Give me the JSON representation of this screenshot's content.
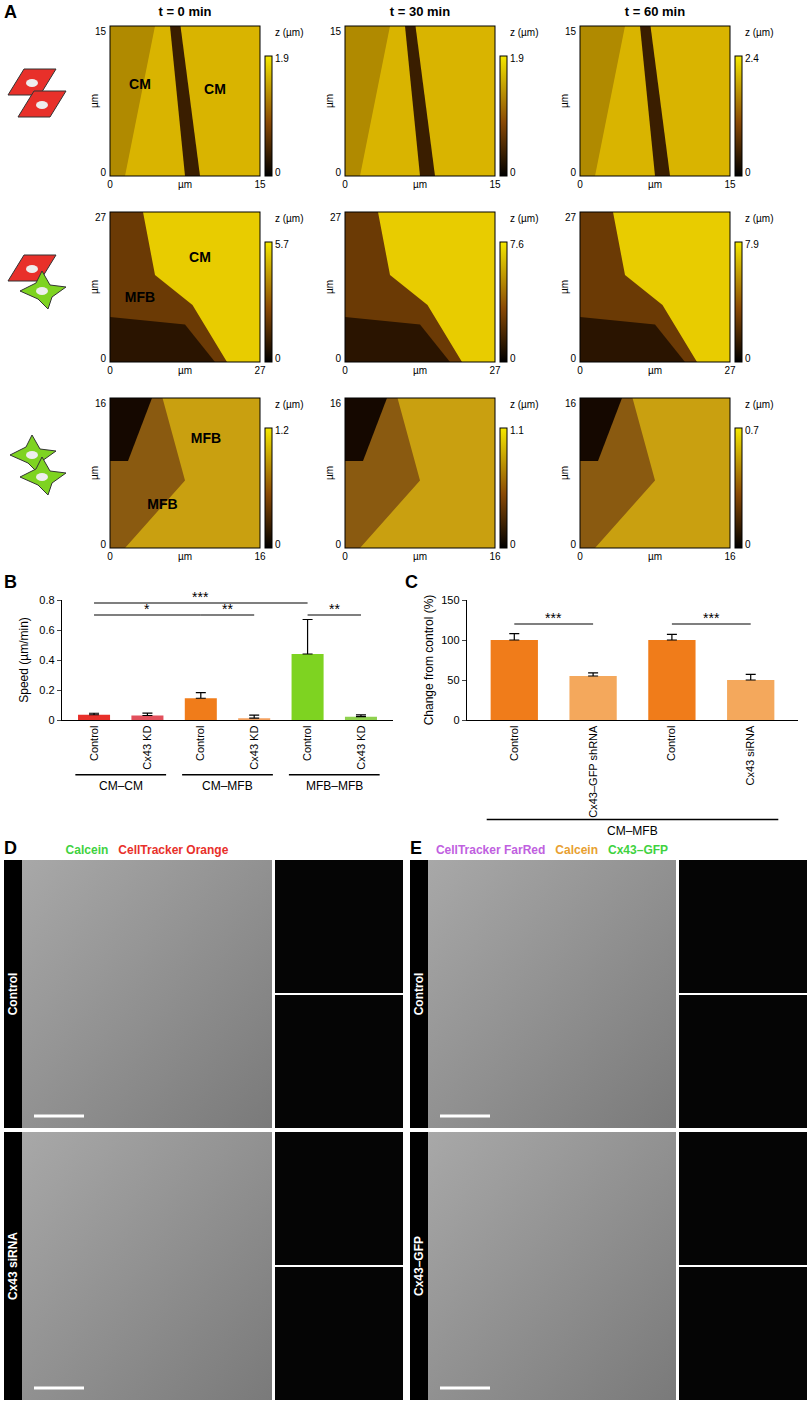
{
  "panel_labels": [
    "A",
    "B",
    "C",
    "D",
    "E"
  ],
  "panel_A": {
    "time_labels": [
      "t = 0 min",
      "t = 30 min",
      "t = 60 min"
    ],
    "axis_unit": "µm",
    "axis_min": 0,
    "colorbar_title": "z (µm)",
    "colorbar_min": 0,
    "rows": [
      {
        "extent": 15,
        "cell_labels": [
          "CM",
          "CM"
        ],
        "z_max": [
          1.9,
          1.9,
          2.4
        ]
      },
      {
        "extent": 27,
        "cell_labels": [
          "CM",
          "MFB"
        ],
        "z_max": [
          5.7,
          7.6,
          7.9
        ]
      },
      {
        "extent": 16,
        "cell_labels": [
          "MFB",
          "MFB"
        ],
        "z_max": [
          1.2,
          1.1,
          0.7
        ]
      }
    ]
  },
  "chart_data": [
    {
      "type": "bar",
      "categories": [
        "Control",
        "Cx43 KD",
        "Control",
        "Cx43 KD",
        "Control",
        "Cx43 KD"
      ],
      "values": [
        0.035,
        0.03,
        0.145,
        0.012,
        0.44,
        0.022
      ],
      "errors": [
        0.01,
        0.016,
        0.038,
        0.02,
        0.23,
        0.012
      ],
      "colors": [
        "#e8302a",
        "#e2505c",
        "#f07c1a",
        "#f4a261",
        "#7ed321",
        "#8fd14f"
      ],
      "ylabel": "Speed (µm/min)",
      "ylim": [
        0,
        0.8
      ],
      "yticks": [
        0,
        0.2,
        0.4,
        0.6,
        0.8
      ],
      "grid": false,
      "groups": [
        {
          "label": "CM–CM",
          "categories": [
            0,
            1
          ]
        },
        {
          "label": "CM–MFB",
          "categories": [
            2,
            3
          ]
        },
        {
          "label": "MFB–MFB",
          "categories": [
            4,
            5
          ]
        }
      ],
      "significance": [
        {
          "between": [
            0,
            4
          ],
          "y": 0.78,
          "label": "***"
        },
        {
          "between": [
            0,
            2
          ],
          "y": 0.7,
          "label": "*"
        },
        {
          "between": [
            2,
            3
          ],
          "y": 0.7,
          "label": "**"
        },
        {
          "between": [
            4,
            5
          ],
          "y": 0.7,
          "label": "**"
        }
      ]
    },
    {
      "type": "bar",
      "categories": [
        "Control",
        "Cx43–GFP shRNA",
        "Control",
        "Cx43 siRNA"
      ],
      "values": [
        100,
        55,
        100,
        50
      ],
      "errors": [
        8,
        4,
        7,
        7
      ],
      "colors": [
        "#f07c1a",
        "#f4a85c",
        "#f07c1a",
        "#f4a85c"
      ],
      "ylabel": "Change from control (%)",
      "ylim": [
        0,
        150
      ],
      "yticks": [
        0,
        50,
        100,
        150
      ],
      "grid": false,
      "groups": [
        {
          "label": "CM–MFB",
          "categories": [
            0,
            1,
            2,
            3
          ]
        }
      ],
      "significance": [
        {
          "between": [
            0,
            1
          ],
          "y": 120,
          "label": "***"
        },
        {
          "between": [
            2,
            3
          ],
          "y": 120,
          "label": "***"
        }
      ]
    }
  ],
  "panel_D": {
    "channels": [
      {
        "text": "Calcein",
        "color": "#3fd23f"
      },
      {
        "text": "CellTracker Orange",
        "color": "#e8302a"
      }
    ],
    "rows": [
      "Control",
      "Cx43 siRNA"
    ]
  },
  "panel_E": {
    "channels": [
      {
        "text": "CellTracker FarRed",
        "color": "#c060e0"
      },
      {
        "text": "Calcein",
        "color": "#e8a030"
      },
      {
        "text": "Cx43–GFP",
        "color": "#3fd23f"
      }
    ],
    "rows": [
      "Control",
      "Cx43–GFP"
    ]
  }
}
